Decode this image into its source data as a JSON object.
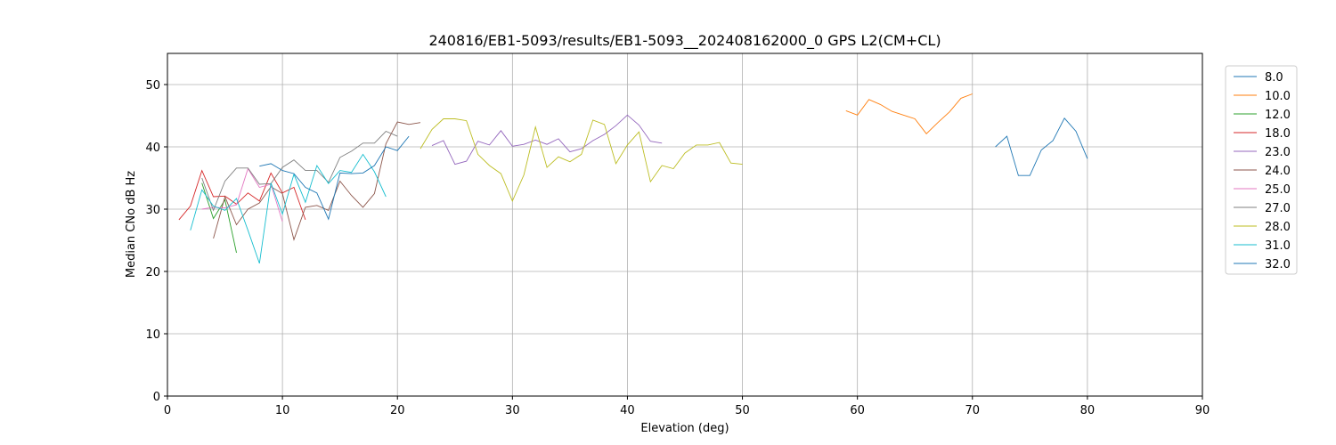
{
  "chart_data": {
    "type": "line",
    "title": "240816/EB1-5093/results/EB1-5093__202408162000_0 GPS L2(CM+CL)",
    "xlabel": "Elevation (deg)",
    "ylabel": "Median CNo dB Hz",
    "xlim": [
      0,
      90
    ],
    "ylim": [
      0,
      55
    ],
    "xticks": [
      0,
      10,
      20,
      30,
      40,
      50,
      60,
      70,
      80,
      90
    ],
    "yticks": [
      0,
      10,
      20,
      30,
      40,
      50
    ],
    "grid": true,
    "legend_position": "outside-right-top",
    "series": [
      {
        "name": "8.0",
        "color": "#1f77b4",
        "x": [
          72,
          73,
          74,
          75,
          76,
          77,
          78,
          79,
          80
        ],
        "y": [
          40.0,
          41.7,
          35.4,
          35.4,
          39.5,
          41.0,
          44.6,
          42.5,
          38.1
        ]
      },
      {
        "name": "10.0",
        "color": "#ff7f0e",
        "x": [
          59,
          60,
          61,
          62,
          63,
          64,
          65,
          66,
          67,
          68,
          69,
          70
        ],
        "y": [
          45.8,
          45.1,
          47.6,
          46.8,
          45.7,
          45.1,
          44.5,
          42.1,
          43.9,
          45.6,
          47.8,
          48.5
        ]
      },
      {
        "name": "12.0",
        "color": "#2ca02c",
        "x": [
          3,
          4,
          5,
          6
        ],
        "y": [
          34.2,
          28.5,
          31.5,
          23.0
        ]
      },
      {
        "name": "18.0",
        "color": "#d62728",
        "x": [
          1,
          2,
          3,
          4,
          5,
          6,
          7,
          8,
          9,
          10,
          11,
          12
        ],
        "y": [
          28.3,
          30.5,
          36.2,
          32.0,
          32.1,
          30.8,
          32.6,
          31.3,
          35.8,
          32.6,
          33.5,
          28.3
        ]
      },
      {
        "name": "23.0",
        "color": "#9467bd",
        "x": [
          23,
          24,
          25,
          26,
          27,
          28,
          29,
          30,
          31,
          32,
          33,
          34,
          35,
          36,
          37,
          38,
          39,
          40,
          41,
          42,
          43
        ],
        "y": [
          40.2,
          41.0,
          37.2,
          37.7,
          40.9,
          40.3,
          42.6,
          40.1,
          40.4,
          41.1,
          40.4,
          41.3,
          39.2,
          39.7,
          41.0,
          42.0,
          43.4,
          45.1,
          43.5,
          40.9,
          40.6
        ]
      },
      {
        "name": "24.0",
        "color": "#8c564b",
        "x": [
          4,
          5,
          6,
          7,
          8,
          9,
          10,
          11,
          12,
          13,
          14,
          15,
          16,
          17,
          18,
          19,
          20,
          21,
          22
        ],
        "y": [
          25.3,
          32.0,
          27.5,
          30.0,
          31.0,
          33.6,
          32.5,
          25.1,
          30.3,
          30.6,
          29.8,
          34.5,
          32.2,
          30.3,
          32.5,
          40.5,
          44.0,
          43.6,
          43.9
        ]
      },
      {
        "name": "25.0",
        "color": "#e377c2",
        "x": [
          3,
          4,
          5,
          6,
          7,
          8,
          9,
          10
        ],
        "y": [
          30.0,
          30.3,
          30.2,
          30.7,
          36.5,
          33.5,
          34.0,
          28.0
        ]
      },
      {
        "name": "27.0",
        "color": "#7f7f7f",
        "x": [
          3,
          4,
          5,
          6,
          7,
          8,
          9,
          10,
          11,
          12,
          13,
          14,
          15,
          16,
          17,
          18,
          19,
          20
        ],
        "y": [
          35.0,
          29.8,
          34.5,
          36.6,
          36.6,
          34.0,
          34.1,
          36.7,
          37.9,
          36.2,
          36.2,
          34.3,
          38.3,
          39.3,
          40.6,
          40.6,
          42.5,
          41.7
        ]
      },
      {
        "name": "28.0",
        "color": "#bcbd22",
        "x": [
          22,
          23,
          24,
          25,
          26,
          27,
          28,
          29,
          30,
          31,
          32,
          33,
          34,
          35,
          36,
          37,
          38,
          39,
          40,
          41,
          42,
          43,
          44,
          45,
          46,
          47,
          48,
          49,
          50
        ],
        "y": [
          39.7,
          42.8,
          44.5,
          44.5,
          44.2,
          38.8,
          37.0,
          35.7,
          31.3,
          35.5,
          43.2,
          36.7,
          38.4,
          37.6,
          38.8,
          44.3,
          43.6,
          37.3,
          40.3,
          42.4,
          34.4,
          37.0,
          36.5,
          39.0,
          40.3,
          40.3,
          40.7,
          37.4,
          37.2
        ]
      },
      {
        "name": "31.0",
        "color": "#17becf",
        "x": [
          2,
          3,
          4,
          5,
          6,
          7,
          8,
          9,
          10,
          11,
          12,
          13,
          14,
          15,
          16,
          17,
          18,
          19
        ],
        "y": [
          26.6,
          33.1,
          30.5,
          29.8,
          31.7,
          26.6,
          21.3,
          34.2,
          29.2,
          35.6,
          31.1,
          37.0,
          34.1,
          36.2,
          35.9,
          38.8,
          36.0,
          32.0
        ]
      },
      {
        "name": "32.0",
        "color": "#1f77b4",
        "x": [
          8,
          9,
          10,
          11,
          12,
          13,
          14,
          15,
          16,
          17,
          18,
          19,
          20,
          21
        ],
        "y": [
          36.9,
          37.3,
          36.2,
          35.7,
          33.5,
          32.6,
          28.4,
          35.8,
          35.7,
          35.8,
          37.0,
          40.0,
          39.4,
          41.7
        ]
      }
    ]
  }
}
